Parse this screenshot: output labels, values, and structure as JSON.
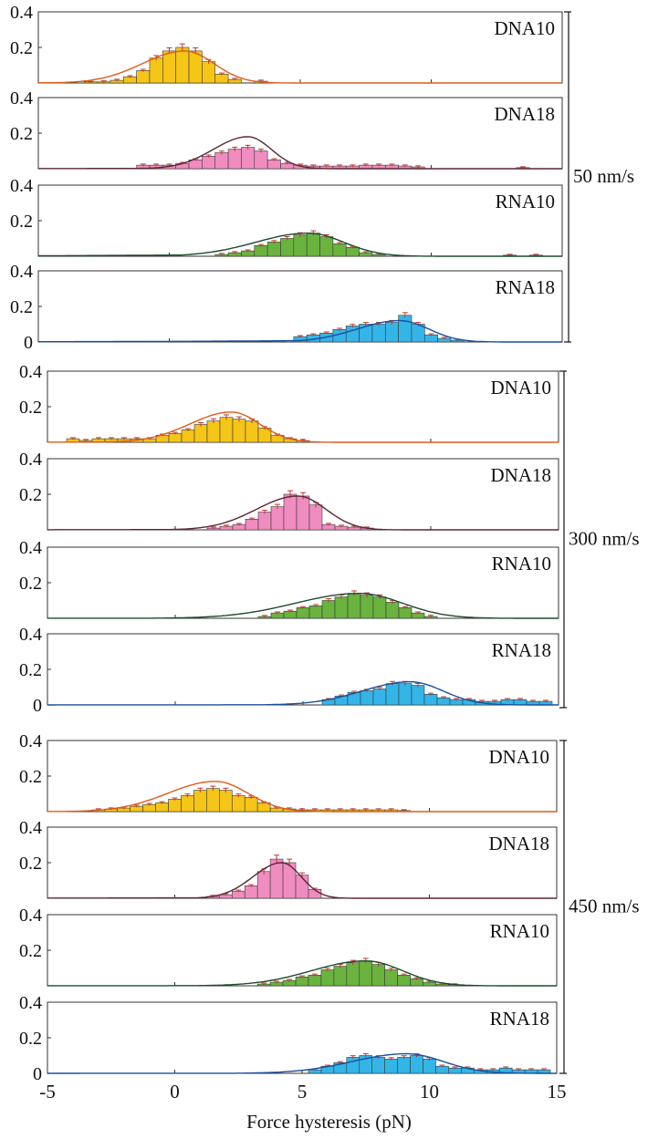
{
  "chart_data": {
    "type": "bar",
    "xlabel": "Force hysteresis (pN)",
    "xlim": [
      -5,
      15
    ],
    "xticks": [
      -5,
      0,
      5,
      10,
      15
    ],
    "ylim": [
      0,
      0.4
    ],
    "yticks_top": [
      "0.4",
      "0.2"
    ],
    "yticks_bottom": [
      "0.4",
      "0.2",
      "0"
    ],
    "bin_width": 0.5,
    "colors": {
      "DNA10": "#f5c518",
      "DNA18": "#f08cc0",
      "RNA10": "#6ab33e",
      "RNA18": "#33b5e8",
      "fit_DNA10": "#e05a1a",
      "fit_DNA18": "#5a2636",
      "fit_RNA10": "#1f4a2c",
      "fit_RNA18": "#1a4f9c",
      "error": "#c0392b"
    },
    "groups": [
      {
        "speed": "50 nm/s",
        "panels": [
          {
            "name": "DNA10",
            "bins": [
              [
                -3,
                0.003
              ],
              [
                -2.5,
                0.006
              ],
              [
                -2,
                0.015
              ],
              [
                -1.5,
                0.035
              ],
              [
                -1,
                0.07
              ],
              [
                -0.5,
                0.14
              ],
              [
                0,
                0.18
              ],
              [
                0.5,
                0.2
              ],
              [
                1,
                0.18
              ],
              [
                1.5,
                0.12
              ],
              [
                2,
                0.05
              ],
              [
                2.5,
                0.02
              ],
              [
                3.5,
                0.01
              ]
            ],
            "fit": {
              "amp": 0.18,
              "mu": 0.6,
              "sigma": 1.3,
              "tail": 0.02
            }
          },
          {
            "name": "DNA18",
            "bins": [
              [
                -1,
                0.02
              ],
              [
                -0.5,
                0.02
              ],
              [
                0,
                0.02
              ],
              [
                0.5,
                0.03
              ],
              [
                1,
                0.05
              ],
              [
                1.5,
                0.07
              ],
              [
                2,
                0.09
              ],
              [
                2.5,
                0.11
              ],
              [
                3,
                0.12
              ],
              [
                3.5,
                0.1
              ],
              [
                4,
                0.05
              ],
              [
                4.5,
                0.03
              ],
              [
                5,
                0.02
              ],
              [
                5.5,
                0.015
              ],
              [
                6,
                0.015
              ],
              [
                6.5,
                0.015
              ],
              [
                7,
                0.015
              ],
              [
                7.5,
                0.02
              ],
              [
                8,
                0.02
              ],
              [
                8.5,
                0.02
              ],
              [
                9,
                0.015
              ],
              [
                9.5,
                0.01
              ],
              [
                13.5,
                0.005
              ]
            ],
            "fit": {
              "amp": 0.18,
              "mu": 3.0,
              "sigma": 1.05,
              "tail": 0.02
            }
          },
          {
            "name": "RNA10",
            "bins": [
              [
                2,
                0.01
              ],
              [
                2.5,
                0.02
              ],
              [
                3,
                0.03
              ],
              [
                3.5,
                0.06
              ],
              [
                4,
                0.08
              ],
              [
                4.5,
                0.1
              ],
              [
                5,
                0.12
              ],
              [
                5.5,
                0.13
              ],
              [
                6,
                0.11
              ],
              [
                6.5,
                0.07
              ],
              [
                7,
                0.05
              ],
              [
                7.5,
                0.02
              ],
              [
                8,
                0.01
              ],
              [
                13,
                0.005
              ],
              [
                14,
                0.005
              ]
            ],
            "fit": {
              "amp": 0.13,
              "mu": 5.3,
              "sigma": 1.6,
              "tail": 0.12
            }
          },
          {
            "name": "RNA18",
            "bins": [
              [
                5,
                0.03
              ],
              [
                5.5,
                0.04
              ],
              [
                6,
                0.05
              ],
              [
                6.5,
                0.07
              ],
              [
                7,
                0.09
              ],
              [
                7.5,
                0.1
              ],
              [
                8,
                0.1
              ],
              [
                8.5,
                0.11
              ],
              [
                9,
                0.15
              ],
              [
                9.5,
                0.1
              ],
              [
                10,
                0.04
              ],
              [
                10.5,
                0.02
              ],
              [
                11,
                0.01
              ]
            ],
            "fit": {
              "amp": 0.12,
              "mu": 8.8,
              "sigma": 1.3,
              "tail": 0.12
            }
          }
        ]
      },
      {
        "speed": "300 nm/s",
        "panels": [
          {
            "name": "DNA10",
            "bins": [
              [
                -4,
                0.02
              ],
              [
                -3.5,
                0.01
              ],
              [
                -3,
                0.02
              ],
              [
                -2.5,
                0.02
              ],
              [
                -2,
                0.02
              ],
              [
                -1.5,
                0.02
              ],
              [
                -1,
                0.02
              ],
              [
                -0.5,
                0.04
              ],
              [
                0,
                0.05
              ],
              [
                0.5,
                0.07
              ],
              [
                1,
                0.1
              ],
              [
                1.5,
                0.12
              ],
              [
                2,
                0.14
              ],
              [
                2.5,
                0.13
              ],
              [
                3,
                0.12
              ],
              [
                3.5,
                0.08
              ],
              [
                4,
                0.04
              ],
              [
                4.5,
                0.02
              ],
              [
                5,
                0.01
              ]
            ],
            "fit": {
              "amp": 0.17,
              "mu": 2.2,
              "sigma": 1.3,
              "tail": 0.02
            }
          },
          {
            "name": "DNA18",
            "bins": [
              [
                1.5,
                0.01
              ],
              [
                2,
                0.02
              ],
              [
                2.5,
                0.03
              ],
              [
                3,
                0.06
              ],
              [
                3.5,
                0.1
              ],
              [
                4,
                0.13
              ],
              [
                4.5,
                0.2
              ],
              [
                5,
                0.19
              ],
              [
                5.5,
                0.14
              ],
              [
                6,
                0.03
              ],
              [
                6.5,
                0.02
              ],
              [
                7,
                0.015
              ],
              [
                7.5,
                0.01
              ]
            ],
            "fit": {
              "amp": 0.19,
              "mu": 4.8,
              "sigma": 1.3,
              "tail": 0.02
            }
          },
          {
            "name": "RNA10",
            "bins": [
              [
                3.5,
                0.01
              ],
              [
                4,
                0.03
              ],
              [
                4.5,
                0.04
              ],
              [
                5,
                0.06
              ],
              [
                5.5,
                0.07
              ],
              [
                6,
                0.1
              ],
              [
                6.5,
                0.12
              ],
              [
                7,
                0.14
              ],
              [
                7.5,
                0.13
              ],
              [
                8,
                0.12
              ],
              [
                8.5,
                0.09
              ],
              [
                9,
                0.06
              ],
              [
                9.5,
                0.03
              ],
              [
                10,
                0.01
              ]
            ],
            "fit": {
              "amp": 0.14,
              "mu": 7.2,
              "sigma": 2.0,
              "tail": 0.02
            }
          },
          {
            "name": "RNA18",
            "bins": [
              [
                6,
                0.03
              ],
              [
                6.5,
                0.05
              ],
              [
                7,
                0.07
              ],
              [
                7.5,
                0.08
              ],
              [
                8,
                0.09
              ],
              [
                8.5,
                0.12
              ],
              [
                9,
                0.12
              ],
              [
                9.5,
                0.11
              ],
              [
                10,
                0.06
              ],
              [
                10.5,
                0.04
              ],
              [
                11,
                0.03
              ],
              [
                11.5,
                0.03
              ],
              [
                12,
                0.02
              ],
              [
                12.5,
                0.02
              ],
              [
                13,
                0.03
              ],
              [
                13.5,
                0.03
              ],
              [
                14,
                0.02
              ],
              [
                14.5,
                0.02
              ]
            ],
            "fit": {
              "amp": 0.13,
              "mu": 9.2,
              "sigma": 1.5,
              "tail": 0.02
            }
          }
        ]
      },
      {
        "speed": "450 nm/s",
        "panels": [
          {
            "name": "DNA10",
            "bins": [
              [
                -3,
                0.01
              ],
              [
                -2.5,
                0.015
              ],
              [
                -2,
                0.02
              ],
              [
                -1.5,
                0.03
              ],
              [
                -1,
                0.04
              ],
              [
                -0.5,
                0.05
              ],
              [
                0,
                0.07
              ],
              [
                0.5,
                0.09
              ],
              [
                1,
                0.12
              ],
              [
                1.5,
                0.13
              ],
              [
                2,
                0.12
              ],
              [
                2.5,
                0.09
              ],
              [
                3,
                0.08
              ],
              [
                3.5,
                0.05
              ],
              [
                4,
                0.02
              ],
              [
                4.5,
                0.015
              ],
              [
                5,
                0.01
              ],
              [
                5.5,
                0.01
              ],
              [
                6,
                0.01
              ],
              [
                6.5,
                0.01
              ],
              [
                7,
                0.01
              ],
              [
                7.5,
                0.01
              ],
              [
                8,
                0.01
              ],
              [
                8.5,
                0.01
              ],
              [
                9,
                0.005
              ]
            ],
            "fit": {
              "amp": 0.17,
              "mu": 1.6,
              "sigma": 1.5,
              "tail": 0.02
            }
          },
          {
            "name": "DNA18",
            "bins": [
              [
                1.5,
                0.01
              ],
              [
                2,
                0.02
              ],
              [
                2.5,
                0.04
              ],
              [
                3,
                0.07
              ],
              [
                3.5,
                0.15
              ],
              [
                4,
                0.22
              ],
              [
                4.5,
                0.2
              ],
              [
                5,
                0.13
              ],
              [
                5.5,
                0.05
              ]
            ],
            "fit": {
              "amp": 0.2,
              "mu": 4.2,
              "sigma": 0.9,
              "tail": 0.02
            }
          },
          {
            "name": "RNA10",
            "bins": [
              [
                3.5,
                0.01
              ],
              [
                4,
                0.02
              ],
              [
                4.5,
                0.03
              ],
              [
                5,
                0.05
              ],
              [
                5.5,
                0.06
              ],
              [
                6,
                0.09
              ],
              [
                6.5,
                0.11
              ],
              [
                7,
                0.13
              ],
              [
                7.5,
                0.14
              ],
              [
                8,
                0.12
              ],
              [
                8.5,
                0.09
              ],
              [
                9,
                0.06
              ],
              [
                9.5,
                0.04
              ],
              [
                10,
                0.02
              ],
              [
                10.5,
                0.01
              ],
              [
                11,
                0.005
              ]
            ],
            "fit": {
              "amp": 0.14,
              "mu": 7.5,
              "sigma": 1.7,
              "tail": 0.02
            }
          },
          {
            "name": "RNA18",
            "bins": [
              [
                5.5,
                0.02
              ],
              [
                6,
                0.04
              ],
              [
                6.5,
                0.06
              ],
              [
                7,
                0.09
              ],
              [
                7.5,
                0.1
              ],
              [
                8,
                0.09
              ],
              [
                8.5,
                0.08
              ],
              [
                9,
                0.09
              ],
              [
                9.5,
                0.1
              ],
              [
                10,
                0.08
              ],
              [
                10.5,
                0.04
              ],
              [
                11,
                0.03
              ],
              [
                11.5,
                0.03
              ],
              [
                12,
                0.02
              ],
              [
                12.5,
                0.02
              ],
              [
                13,
                0.03
              ],
              [
                13.5,
                0.02
              ],
              [
                14,
                0.02
              ],
              [
                14.5,
                0.02
              ]
            ],
            "fit": {
              "amp": 0.11,
              "mu": 9.1,
              "sigma": 1.7,
              "tail": 0.02
            }
          }
        ]
      }
    ]
  }
}
